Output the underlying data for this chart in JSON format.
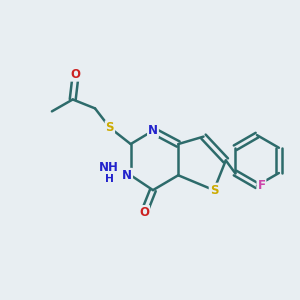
{
  "background_color": "#e8eef2",
  "bond_color": "#2d6b6b",
  "bond_width": 1.8,
  "atom_colors": {
    "S": "#ccaa00",
    "N": "#2222cc",
    "O": "#cc2222",
    "F": "#cc44aa",
    "C": "#2d6b6b",
    "H": "#2d6b6b"
  },
  "font_size_atom": 8.5
}
